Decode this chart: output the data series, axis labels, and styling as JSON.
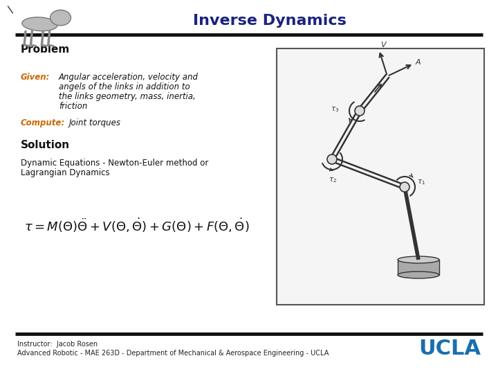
{
  "title": "Inverse Dynamics",
  "title_color": "#1a237e",
  "title_fontsize": 16,
  "bg_color": "#ffffff",
  "separator_color": "#111111",
  "problem_label": "Problem",
  "given_label": "Given:",
  "given_label_color": "#cc6600",
  "given_text_line1": "Angular acceleration, velocity and",
  "given_text_line2": "angels of the links in addition to",
  "given_text_line3": "the links geometry, mass, inertia,",
  "given_text_line4": "friction",
  "compute_label": "Compute:",
  "compute_label_color": "#cc6600",
  "compute_text": "Joint torques",
  "solution_label": "Solution",
  "solution_line1": "Dynamic Equations - Newton-Euler method or",
  "solution_line2": "Lagrangian Dynamics",
  "footer_instructor": "Instructor:  Jacob Rosen",
  "footer_course": "Advanced Robotic - MAE 263D - Department of Mechanical & Aerospace Engineering - UCLA",
  "ucla_text": "UCLA",
  "ucla_color": "#1a6faf",
  "text_color": "#111111",
  "diagram_bg": "#f5f5f5",
  "diagram_edge": "#555555",
  "arm_color": "#333333",
  "joint_face": "#dddddd",
  "base_color": "#aaaaaa"
}
